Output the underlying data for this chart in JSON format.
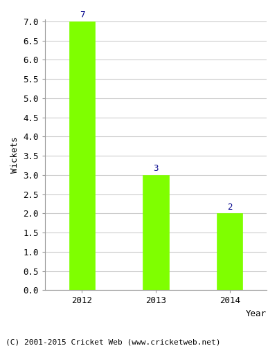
{
  "years": [
    "2012",
    "2013",
    "2014"
  ],
  "values": [
    7,
    3,
    2
  ],
  "bar_color": "#7fff00",
  "bar_edgecolor": "#7fff00",
  "xlabel": "Year",
  "ylabel": "Wickets",
  "ylim": [
    0,
    7.0
  ],
  "yticks": [
    0.0,
    0.5,
    1.0,
    1.5,
    2.0,
    2.5,
    3.0,
    3.5,
    4.0,
    4.5,
    5.0,
    5.5,
    6.0,
    6.5,
    7.0
  ],
  "label_color": "#00008b",
  "label_fontsize": 9,
  "xlabel_fontsize": 9,
  "ylabel_fontsize": 9,
  "tick_fontsize": 9,
  "footer_text": "(C) 2001-2015 Cricket Web (www.cricketweb.net)",
  "footer_fontsize": 8,
  "background_color": "#ffffff",
  "grid_color": "#cccccc",
  "bar_width": 0.35,
  "bar_positions": [
    0.5,
    1.5,
    2.5
  ]
}
